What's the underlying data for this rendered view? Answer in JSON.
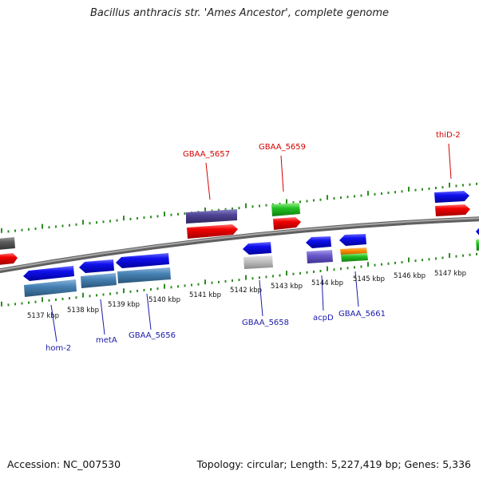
{
  "title": "Bacillus anthracis str. 'Ames Ancestor', complete genome",
  "footer": {
    "accession": "Accession: NC_007530",
    "summary": "Topology: circular; Length: 5,227,419 bp; Genes: 5,336"
  },
  "colors": {
    "backbone": "#808080",
    "tick_track": "#2e8b22",
    "label_forward": "#d40000",
    "label_reverse": "#1a1aaa"
  },
  "scale_ticks": [
    "5137 kbp",
    "5138 kbp",
    "5139 kbp",
    "5140 kbp",
    "5141 kbp",
    "5142 kbp",
    "5143 kbp",
    "5144 kbp",
    "5145 kbp",
    "5146 kbp",
    "5147 kbp"
  ],
  "gene_labels": [
    {
      "name": "GBAA_5657",
      "strand": "forward"
    },
    {
      "name": "GBAA_5659",
      "strand": "forward"
    },
    {
      "name": "thiD-2",
      "strand": "forward"
    },
    {
      "name": "hom-2",
      "strand": "reverse"
    },
    {
      "name": "metA",
      "strand": "reverse"
    },
    {
      "name": "GBAA_5656",
      "strand": "reverse"
    },
    {
      "name": "GBAA_5658",
      "strand": "reverse"
    },
    {
      "name": "acpD",
      "strand": "reverse"
    },
    {
      "name": "GBAA_5661",
      "strand": "reverse"
    }
  ]
}
